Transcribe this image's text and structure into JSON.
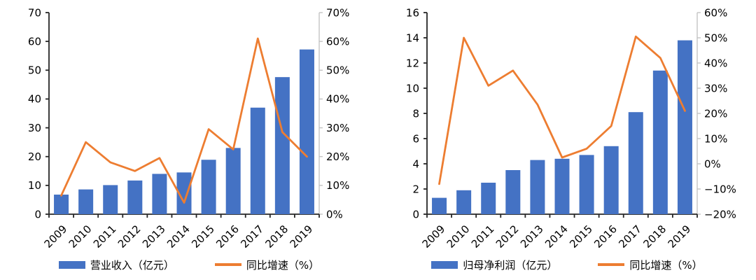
{
  "colors": {
    "bar": "#4472C4",
    "line": "#ED7D31",
    "primary_axis": "#262626",
    "secondary_axis": "#BFBFBF",
    "label": "#000000",
    "background": "#FFFFFF"
  },
  "chart_data": [
    {
      "type": "combo-bar-line",
      "title": "",
      "categories": [
        "2009",
        "2010",
        "2011",
        "2012",
        "2013",
        "2014",
        "2015",
        "2016",
        "2017",
        "2018",
        "2019"
      ],
      "series": [
        {
          "name": "营业收入（亿元）",
          "type": "bar",
          "axis": "left",
          "values": [
            6.8,
            8.6,
            10.1,
            11.7,
            14.0,
            14.5,
            18.9,
            23.0,
            37.0,
            47.6,
            57.2
          ]
        },
        {
          "name": "同比增速（%）",
          "type": "line",
          "axis": "right",
          "values": [
            6.5,
            25.0,
            18.0,
            15.0,
            19.5,
            4.0,
            29.5,
            22.5,
            61.0,
            28.5,
            20.0
          ]
        }
      ],
      "left_axis": {
        "min": 0,
        "max": 70,
        "ticks": [
          "0",
          "10",
          "20",
          "30",
          "40",
          "50",
          "60",
          "70"
        ]
      },
      "right_axis": {
        "min": 0,
        "max": 70,
        "ticks": [
          "0%",
          "10%",
          "20%",
          "30%",
          "40%",
          "50%",
          "60%",
          "70%"
        ]
      },
      "grid": "off",
      "legend_position": "bottom",
      "legend": [
        {
          "label": "营业收入（亿元）",
          "marker": "bar"
        },
        {
          "label": "同比增速（%）",
          "marker": "line"
        }
      ]
    },
    {
      "type": "combo-bar-line",
      "title": "",
      "categories": [
        "2009",
        "2010",
        "2011",
        "2012",
        "2013",
        "2014",
        "2015",
        "2016",
        "2017",
        "2018",
        "2019"
      ],
      "series": [
        {
          "name": "归母净利润（亿元）",
          "type": "bar",
          "axis": "left",
          "values": [
            1.3,
            1.9,
            2.5,
            3.5,
            4.3,
            4.4,
            4.7,
            5.4,
            8.1,
            11.4,
            13.8
          ]
        },
        {
          "name": "同比增速（%）",
          "type": "line",
          "axis": "right",
          "values": [
            -8.0,
            50.0,
            31.0,
            37.0,
            23.5,
            2.5,
            6.0,
            15.0,
            50.5,
            42.0,
            21.0
          ]
        }
      ],
      "left_axis": {
        "min": 0,
        "max": 16,
        "ticks": [
          "0",
          "2",
          "4",
          "6",
          "8",
          "10",
          "12",
          "14",
          "16"
        ]
      },
      "right_axis": {
        "min": -20,
        "max": 60,
        "ticks": [
          "−20%",
          "−10%",
          "0%",
          "10%",
          "20%",
          "30%",
          "40%",
          "50%",
          "60%"
        ]
      },
      "grid": "off",
      "legend_position": "bottom",
      "legend": [
        {
          "label": "归母净利润（亿元）",
          "marker": "bar"
        },
        {
          "label": "同比增速（%）",
          "marker": "line"
        }
      ]
    }
  ]
}
